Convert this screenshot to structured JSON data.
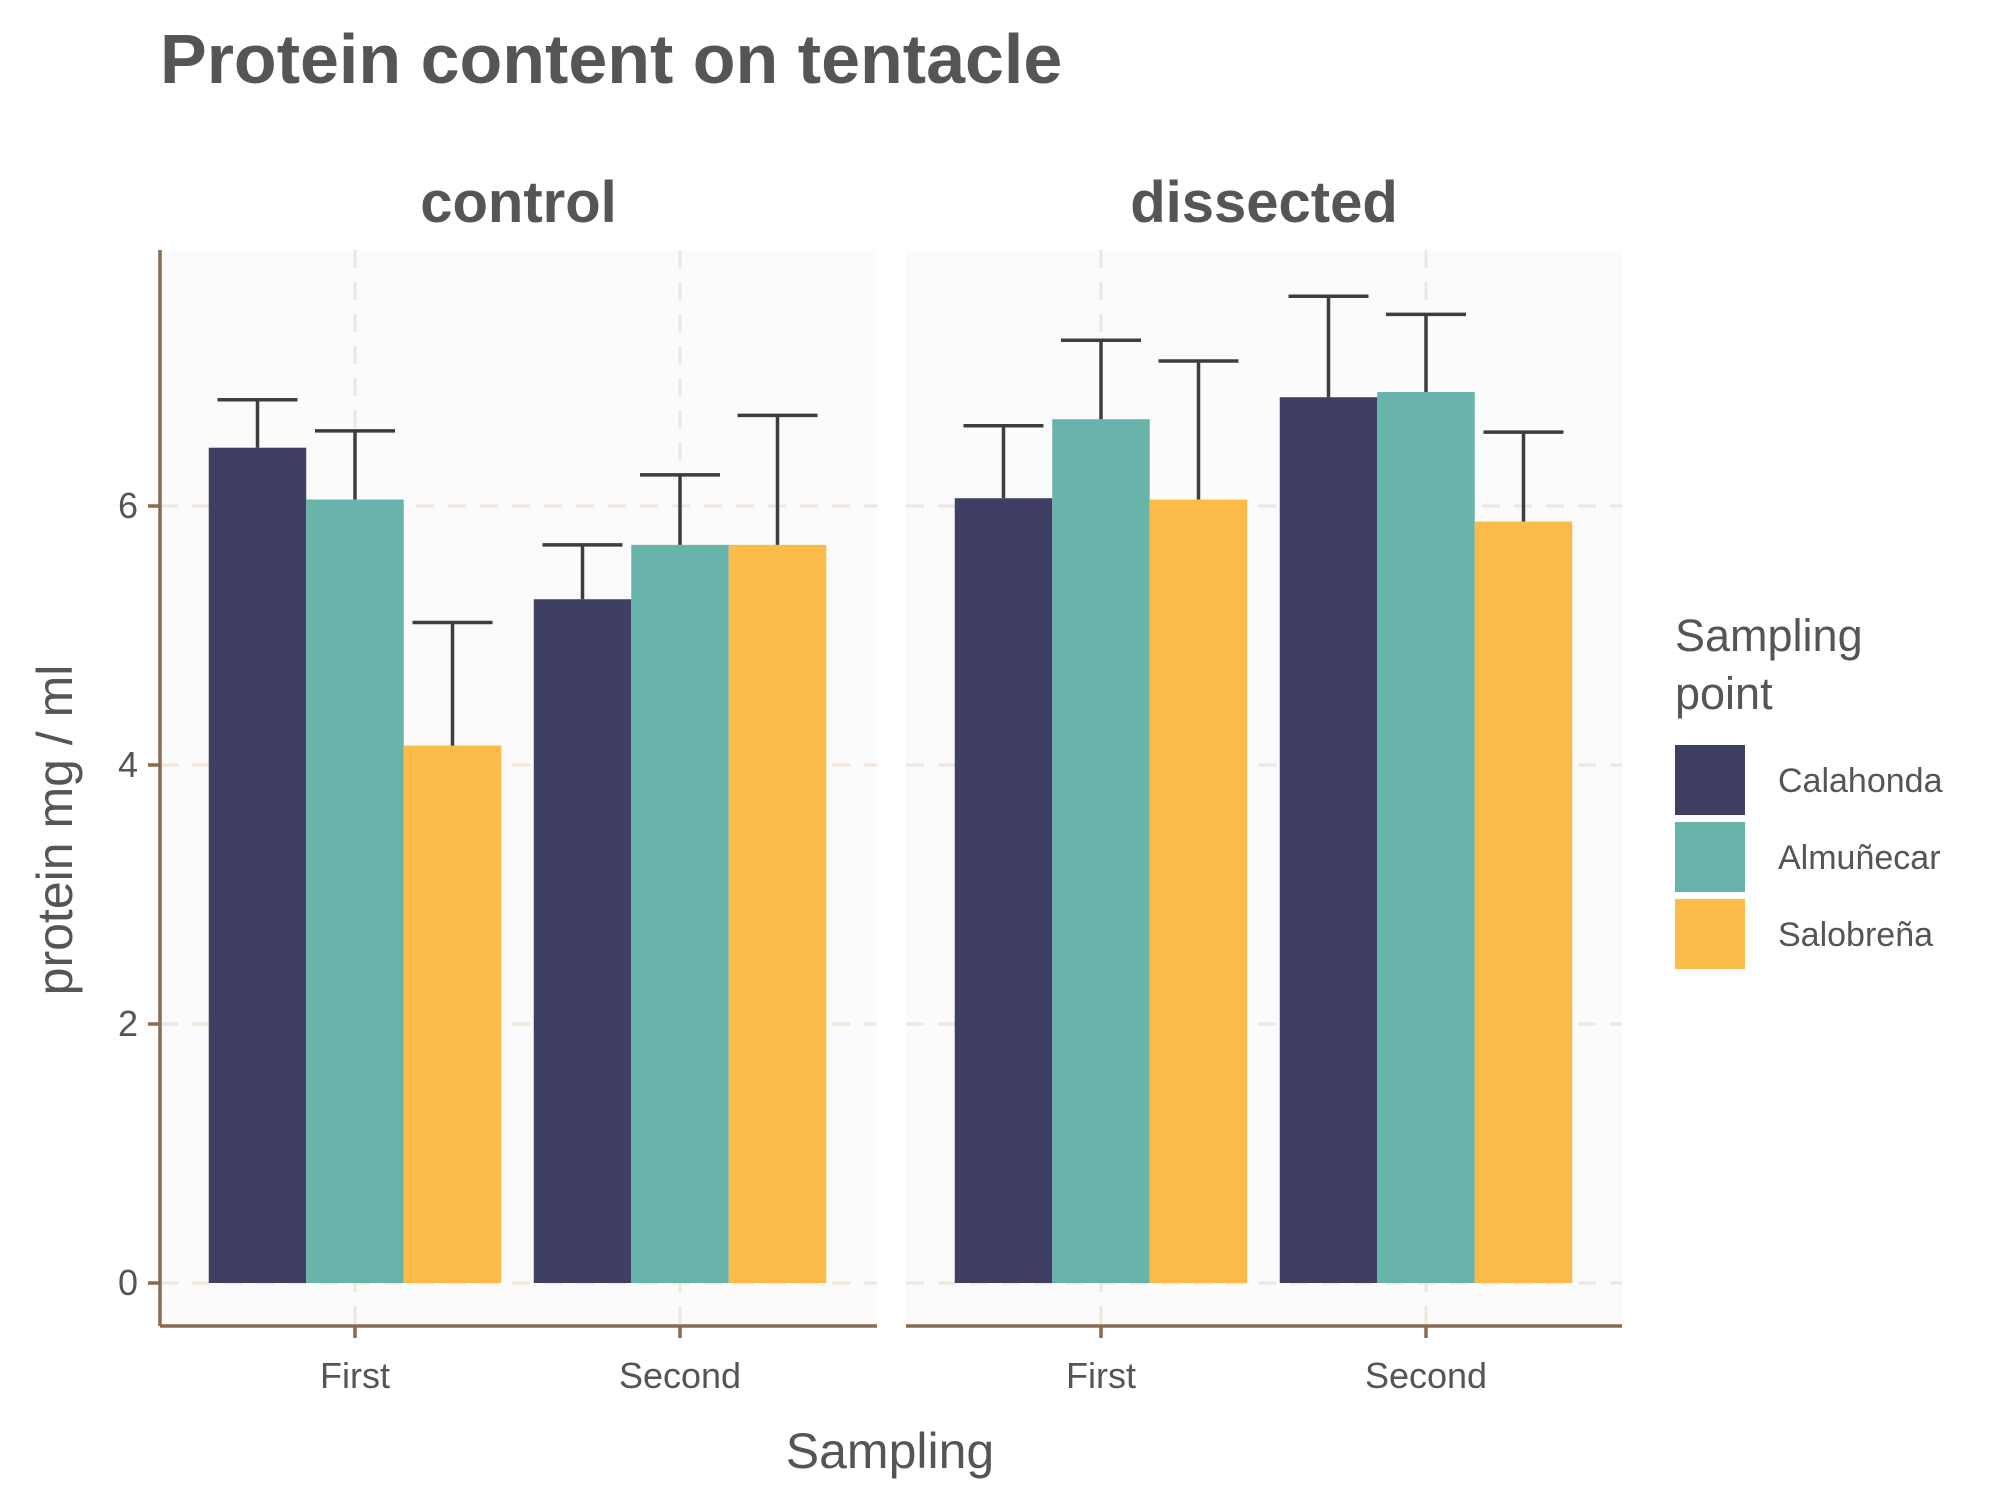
{
  "chart_data": {
    "type": "bar",
    "title": "Protein content on tentacle",
    "xlabel": "Sampling",
    "ylabel": "protein mg / ml",
    "ylim": [
      0,
      7.8
    ],
    "y_ticks": [
      0,
      2,
      4,
      6
    ],
    "grid": true,
    "categories": [
      "First",
      "Second"
    ],
    "legend": {
      "title_lines": [
        "Sampling",
        "point"
      ],
      "position": "right"
    },
    "series_colors": {
      "Calahonda": "#3f3f63",
      "Almuñecar": "#69b4aa",
      "Salobreña": "#fbbb48"
    },
    "panels": [
      {
        "name": "control",
        "series": [
          {
            "name": "Calahonda",
            "values": [
              6.45,
              5.28
            ],
            "errors_upper": [
              6.82,
              5.7
            ]
          },
          {
            "name": "Almuñecar",
            "values": [
              6.05,
              5.7
            ],
            "errors_upper": [
              6.58,
              6.24
            ]
          },
          {
            "name": "Salobreña",
            "values": [
              4.15,
              5.7
            ],
            "errors_upper": [
              5.1,
              6.7
            ]
          }
        ]
      },
      {
        "name": "dissected",
        "series": [
          {
            "name": "Calahonda",
            "values": [
              6.06,
              6.84
            ],
            "errors_upper": [
              6.62,
              7.62
            ]
          },
          {
            "name": "Almuñecar",
            "values": [
              6.67,
              6.88
            ],
            "errors_upper": [
              7.28,
              7.48
            ]
          },
          {
            "name": "Salobreña",
            "values": [
              6.05,
              5.88
            ],
            "errors_upper": [
              7.12,
              6.57
            ]
          }
        ]
      }
    ]
  }
}
